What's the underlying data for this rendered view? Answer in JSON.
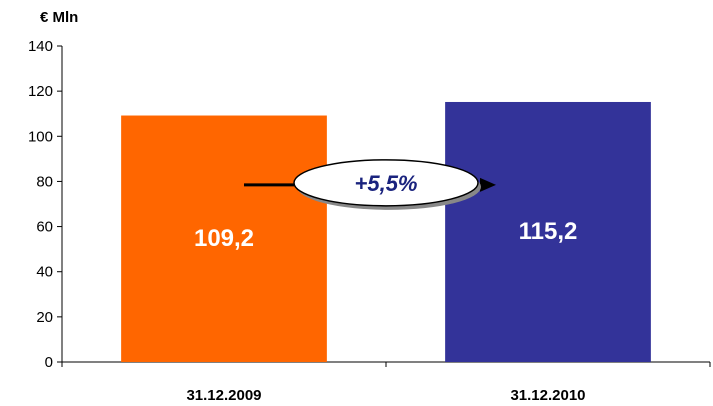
{
  "chart_data": {
    "type": "bar",
    "unit_label": "€ Mln",
    "categories": [
      "31.12.2009",
      "31.12.2010"
    ],
    "values": [
      109.2,
      115.2
    ],
    "value_labels": [
      "109,2",
      "115,2"
    ],
    "colors": [
      "#ff6600",
      "#333399"
    ],
    "ylim": [
      0,
      140
    ],
    "yticks": [
      0,
      20,
      40,
      60,
      80,
      100,
      120,
      140
    ],
    "grid": false,
    "annotation": {
      "text": "+5,5%",
      "text_color": "#1a237e",
      "arrow_color": "#000000"
    }
  }
}
